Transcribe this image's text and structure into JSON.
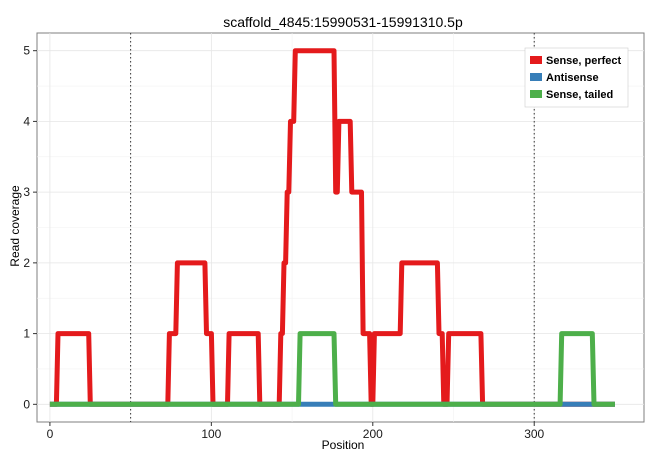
{
  "chart_data": {
    "type": "line",
    "title": "scaffold_4845:15990531-15991310.5p",
    "xlabel": "Position",
    "ylabel": "Read coverage",
    "xlim": [
      -8,
      368
    ],
    "ylim": [
      -0.25,
      5.25
    ],
    "xticks": [
      0,
      100,
      200,
      300
    ],
    "yticks": [
      0,
      1,
      2,
      3,
      4,
      5
    ],
    "grid": true,
    "vlines": [
      50,
      300
    ],
    "legend_position": "top-right",
    "series": [
      {
        "name": "Sense, perfect",
        "color": "#e41a1c",
        "x": [
          0,
          4,
          5,
          24,
          25,
          73,
          74,
          78,
          79,
          96,
          97,
          100,
          101,
          110,
          111,
          129,
          130,
          142,
          143,
          144,
          145,
          146,
          147,
          148,
          149,
          151,
          152,
          155,
          156,
          176,
          177,
          178,
          179,
          180,
          181,
          186,
          187,
          193,
          194,
          198,
          199,
          200,
          201,
          217,
          218,
          240,
          241,
          243,
          244,
          246,
          247,
          267,
          268,
          350
        ],
        "values": [
          0,
          0,
          1,
          1,
          0,
          0,
          1,
          1,
          2,
          2,
          1,
          1,
          0,
          0,
          1,
          1,
          0,
          0,
          1,
          1,
          2,
          2,
          3,
          3,
          4,
          4,
          5,
          5,
          5,
          5,
          3,
          3,
          4,
          4,
          4,
          4,
          3,
          3,
          1,
          1,
          0,
          0,
          1,
          1,
          2,
          2,
          1,
          1,
          0,
          0,
          1,
          1,
          0,
          0
        ]
      },
      {
        "name": "Antisense",
        "color": "#377eb8",
        "x": [
          0,
          155,
          156,
          176,
          177,
          316,
          317,
          336,
          337,
          350
        ],
        "values": [
          0,
          0,
          0,
          0,
          0,
          0,
          0,
          0,
          0,
          0
        ]
      },
      {
        "name": "Sense, tailed",
        "color": "#4daf4a",
        "x": [
          0,
          154,
          155,
          176,
          177,
          316,
          317,
          336,
          337,
          350
        ],
        "values": [
          0,
          0,
          1,
          1,
          0,
          0,
          1,
          1,
          0,
          0
        ]
      }
    ]
  }
}
